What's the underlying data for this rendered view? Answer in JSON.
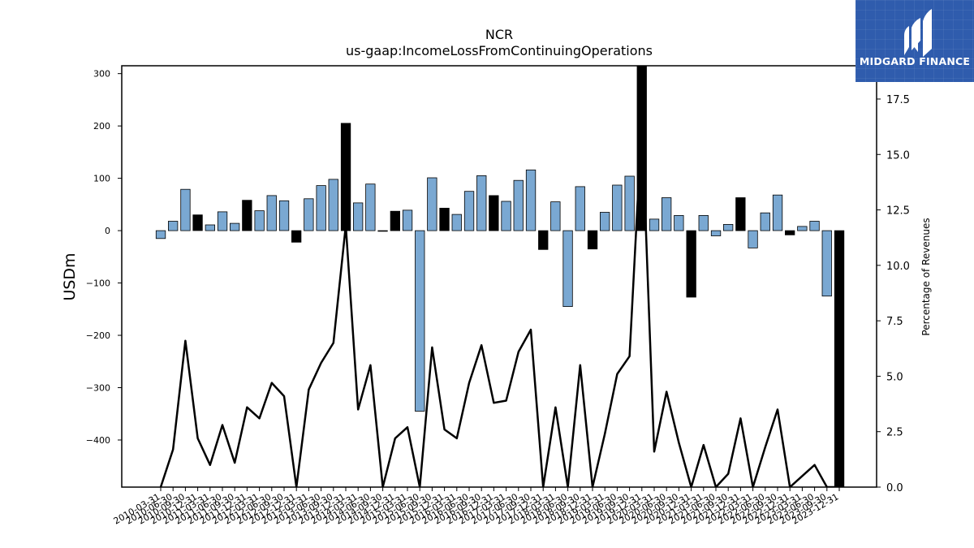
{
  "chart_data": {
    "type": "bar",
    "title": "NCR",
    "subtitle": "us-gaap:IncomeLossFromContinuingOperations",
    "ylabel": "USDm",
    "y2label": "Percentage of Revenues",
    "ylim": [
      -490,
      315
    ],
    "y2lim": [
      0,
      19.0
    ],
    "yticks": [
      -400,
      -300,
      -200,
      -100,
      0,
      100,
      200,
      300
    ],
    "yticks_right": [
      "0.0",
      "2.5",
      "5.0",
      "7.5",
      "10.0",
      "12.5",
      "15.0",
      "17.5"
    ],
    "colors": {
      "bar": "#7aa8d2",
      "bar_q4": "#000000",
      "line": "#000000",
      "axis": "#000000"
    },
    "categories": [
      "2010-03-31",
      "2010-06-30",
      "2010-09-30",
      "2010-12-31",
      "2011-03-31",
      "2011-06-30",
      "2011-09-30",
      "2011-12-31",
      "2012-03-31",
      "2012-06-30",
      "2012-09-30",
      "2012-12-31",
      "2013-03-31",
      "2013-06-30",
      "2013-09-30",
      "2013-12-31",
      "2014-03-31",
      "2014-06-30",
      "2014-09-30",
      "2014-12-31",
      "2015-03-31",
      "2015-06-30",
      "2015-09-30",
      "2015-12-31",
      "2016-03-31",
      "2016-06-30",
      "2016-09-30",
      "2016-12-31",
      "2017-03-31",
      "2017-06-30",
      "2017-09-30",
      "2017-12-31",
      "2018-03-31",
      "2018-06-30",
      "2018-09-30",
      "2018-12-31",
      "2019-03-31",
      "2019-06-30",
      "2019-09-30",
      "2019-12-31",
      "2020-03-31",
      "2020-06-30",
      "2020-09-30",
      "2020-12-31",
      "2021-03-31",
      "2021-06-30",
      "2021-09-30",
      "2021-12-31",
      "2022-03-31",
      "2022-06-30",
      "2022-09-30",
      "2022-12-31",
      "2023-03-31",
      "2023-06-30",
      "2023-09-30",
      "2023-12-31"
    ],
    "series": [
      {
        "type": "bar",
        "values": [
          -15,
          18,
          79,
          30,
          11,
          36,
          14,
          58,
          38,
          67,
          57,
          -22,
          61,
          86,
          98,
          205,
          53,
          89,
          0,
          37,
          39,
          -345,
          101,
          43,
          31,
          75,
          105,
          67,
          56,
          96,
          116,
          -36,
          55,
          -145,
          84,
          -35,
          35,
          87,
          104,
          315,
          22,
          63,
          29,
          -127,
          29,
          -10,
          12,
          63,
          -33,
          34,
          68,
          -8,
          8,
          18,
          -125,
          -490
        ]
      },
      {
        "type": "line",
        "axis": "right",
        "values": [
          0,
          1.7,
          6.6,
          2.2,
          1.0,
          2.8,
          1.1,
          3.6,
          3.1,
          4.7,
          4.1,
          0,
          4.4,
          5.6,
          6.5,
          11.8,
          3.5,
          5.5,
          0,
          2.2,
          2.7,
          0,
          6.3,
          2.6,
          2.2,
          4.7,
          6.4,
          3.8,
          3.9,
          6.1,
          7.1,
          0,
          3.6,
          0,
          5.5,
          0,
          2.4,
          5.1,
          5.9,
          16.5,
          1.6,
          4.3,
          2.0,
          0,
          1.9,
          0,
          0.6,
          3.1,
          0,
          1.8,
          3.5,
          0,
          0.5,
          1.0,
          0,
          0
        ]
      }
    ]
  },
  "logo": {
    "text": "MIDGARD FINANCE",
    "icon": "midgard-logo-icon"
  }
}
